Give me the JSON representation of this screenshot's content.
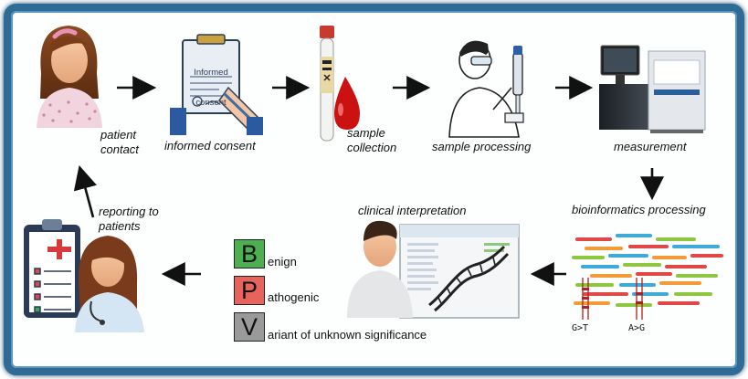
{
  "steps": {
    "patient_contact": "patient\ncontact",
    "informed_consent": "informed consent",
    "sample_collection": "sample\ncollection",
    "sample_processing": "sample processing",
    "measurement": "measurement",
    "bioinformatics_processing": "bioinformatics processing",
    "clinical_interpretation": "clinical interpretation",
    "reporting": "reporting to\npatients"
  },
  "consent_form": {
    "title_line1": "Informed",
    "title_line2": "consent"
  },
  "classification": {
    "benign": {
      "letter": "B",
      "rest": "enign",
      "color": "#4caf50"
    },
    "pathogenic": {
      "letter": "P",
      "rest": "athogenic",
      "color": "#e9635d"
    },
    "vus": {
      "letter": "V",
      "rest": "ariant of unknown significance",
      "color": "#9a9a9a"
    }
  },
  "variants": {
    "left": "G>T",
    "right": "A>G"
  },
  "colors": {
    "frame": "#2f6c95",
    "arrow": "#111111",
    "blood": "#cc1111"
  }
}
